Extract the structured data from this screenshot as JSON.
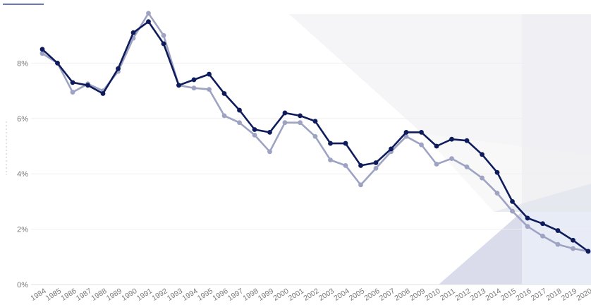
{
  "chart_data": {
    "type": "line",
    "title": "",
    "xlabel": "",
    "ylabel": "",
    "categories": [
      "1984",
      "1985",
      "1986",
      "1987",
      "1988",
      "1989",
      "1990",
      "1991",
      "1992",
      "1993",
      "1994",
      "1995",
      "1996",
      "1997",
      "1998",
      "1999",
      "2000",
      "2001",
      "2002",
      "2003",
      "2004",
      "2005",
      "2006",
      "2007",
      "2008",
      "2009",
      "2010",
      "2011",
      "2012",
      "2013",
      "2014",
      "2015",
      "2016",
      "2017",
      "2018",
      "2019",
      "2020"
    ],
    "ylim": [
      0,
      10
    ],
    "yticks": [
      "0%",
      "2%",
      "4%",
      "6%",
      "8%"
    ],
    "ytick_values": [
      0,
      2,
      4,
      6,
      8
    ],
    "grid": true,
    "legend": "none",
    "series": [
      {
        "color": "#0f1c5c",
        "values": [
          8.5,
          8.0,
          7.3,
          7.2,
          6.9,
          7.8,
          9.1,
          9.5,
          8.7,
          7.2,
          7.4,
          7.6,
          6.9,
          6.3,
          5.6,
          5.5,
          6.2,
          6.1,
          5.9,
          5.1,
          5.1,
          4.3,
          4.4,
          4.9,
          5.5,
          5.5,
          5.0,
          5.25,
          5.2,
          4.7,
          4.05,
          3.0,
          2.4,
          2.2,
          1.95,
          1.6,
          1.2
        ]
      },
      {
        "color": "#9ea3c3",
        "values": [
          8.35,
          8.0,
          6.95,
          7.25,
          7.0,
          7.7,
          8.9,
          9.8,
          9.0,
          7.2,
          7.1,
          7.05,
          6.1,
          5.85,
          5.4,
          4.8,
          5.85,
          5.85,
          5.35,
          4.5,
          4.3,
          3.6,
          4.2,
          4.8,
          5.35,
          5.05,
          4.35,
          4.55,
          4.25,
          3.85,
          3.3,
          2.65,
          2.1,
          1.75,
          1.45,
          1.3,
          1.2
        ]
      }
    ]
  }
}
